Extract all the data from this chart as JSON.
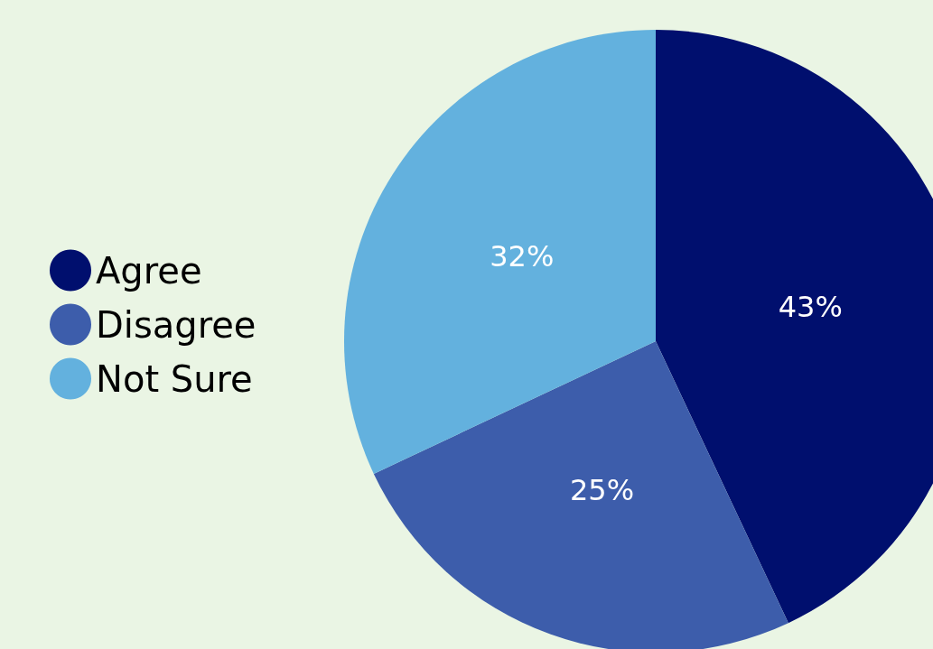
{
  "chart_data": {
    "type": "pie",
    "categories": [
      "Agree",
      "Disagree",
      "Not Sure"
    ],
    "values": [
      43,
      25,
      32
    ],
    "colors": [
      "#000f6e",
      "#3d5dab",
      "#63b1de"
    ],
    "value_labels": [
      "43%",
      "25%",
      "32%"
    ],
    "legend": "left"
  }
}
